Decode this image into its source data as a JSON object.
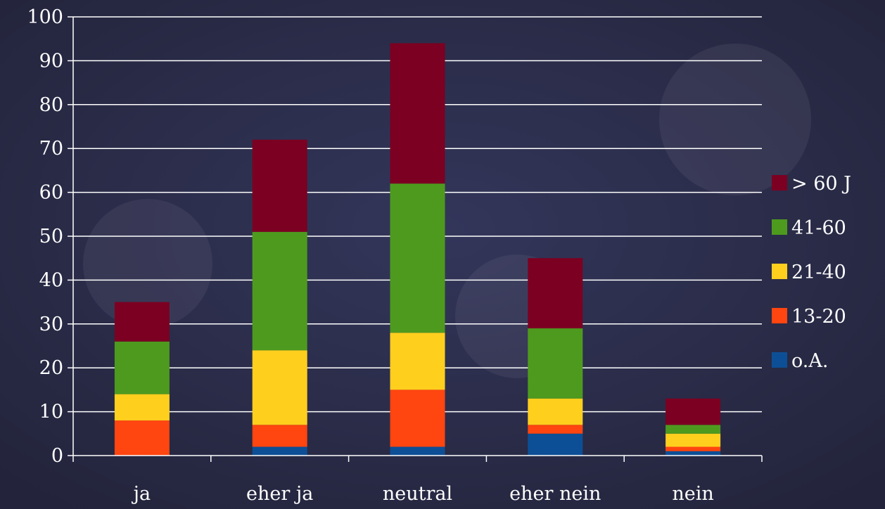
{
  "chart_data": {
    "type": "bar",
    "stacked": true,
    "categories": [
      "ja",
      "eher ja",
      "neutral",
      "eher nein",
      "nein"
    ],
    "series": [
      {
        "name": "o.A.",
        "color": "#0d4f96",
        "values": [
          0,
          2,
          2,
          5,
          1
        ]
      },
      {
        "name": "13-20",
        "color": "#ff4510",
        "values": [
          8,
          5,
          13,
          2,
          1
        ]
      },
      {
        "name": "21-40",
        "color": "#ffcf1e",
        "values": [
          6,
          17,
          13,
          6,
          3
        ]
      },
      {
        "name": "41-60",
        "color": "#4e9a1e",
        "values": [
          12,
          27,
          34,
          16,
          2
        ]
      },
      {
        "name": "> 60 J",
        "color": "#7c0022",
        "values": [
          9,
          21,
          32,
          16,
          6
        ]
      }
    ],
    "legend_order": [
      "> 60 J",
      "41-60",
      "21-40",
      "13-20",
      "o.A."
    ],
    "ylim": [
      0,
      100
    ],
    "yticks": [
      0,
      10,
      20,
      30,
      40,
      50,
      60,
      70,
      80,
      90,
      100
    ],
    "grid": true,
    "legend_position": "right",
    "background": "#2b2d48",
    "axis_color": "#ffffff",
    "title": "",
    "xlabel": "",
    "ylabel": ""
  }
}
